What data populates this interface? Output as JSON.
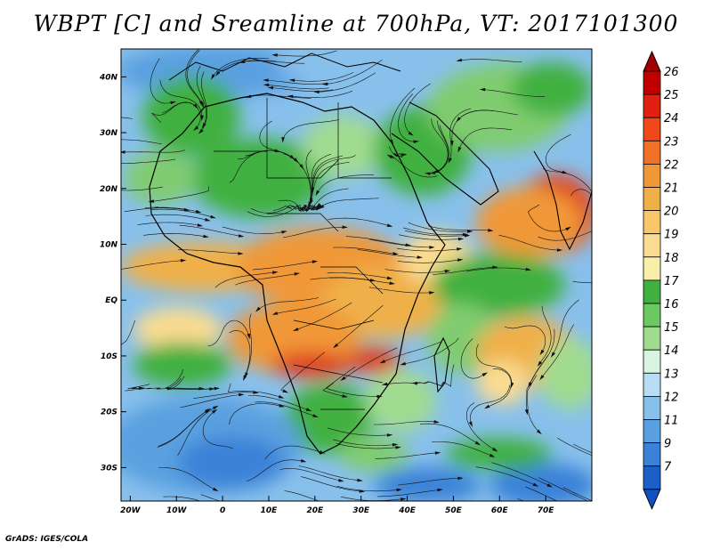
{
  "title": "WBPT [C] and Sreamline at 700hPa, VT: 2017101300",
  "credit": "GrADS: IGES/COLA",
  "map": {
    "lon_range": [
      -22,
      80
    ],
    "lat_range": [
      -36,
      45
    ],
    "lat_ticks": [
      {
        "value": 40,
        "label": "40N"
      },
      {
        "value": 30,
        "label": "30N"
      },
      {
        "value": 20,
        "label": "20N"
      },
      {
        "value": 10,
        "label": "10N"
      },
      {
        "value": 0,
        "label": "EQ"
      },
      {
        "value": -10,
        "label": "10S"
      },
      {
        "value": -20,
        "label": "20S"
      },
      {
        "value": -30,
        "label": "30S"
      }
    ],
    "lon_ticks": [
      {
        "value": -20,
        "label": "20W"
      },
      {
        "value": -10,
        "label": "10W"
      },
      {
        "value": 0,
        "label": "0"
      },
      {
        "value": 10,
        "label": "10E"
      },
      {
        "value": 20,
        "label": "20E"
      },
      {
        "value": 30,
        "label": "30E"
      },
      {
        "value": 40,
        "label": "40E"
      },
      {
        "value": 50,
        "label": "50E"
      },
      {
        "value": 60,
        "label": "60E"
      },
      {
        "value": 70,
        "label": "70E"
      }
    ]
  },
  "colorbar": {
    "labels": [
      "26",
      "25",
      "24",
      "23",
      "22",
      "21",
      "20",
      "19",
      "18",
      "17",
      "16",
      "15",
      "14",
      "13",
      "12",
      "11",
      "9",
      "7"
    ],
    "colors": [
      "#c00000",
      "#e02010",
      "#f04818",
      "#f07028",
      "#f09838",
      "#f0b048",
      "#f8c868",
      "#fadc90",
      "#f8f0a8",
      "#40b040",
      "#6cc860",
      "#a0dc90",
      "#d8f4e0",
      "#b8dcf4",
      "#88c0ec",
      "#5aa0e0",
      "#3a82d8",
      "#1a60c8"
    ],
    "top_arrow_color": "#a00000",
    "bottom_arrow_color": "#1050c0"
  },
  "colors": {
    "ocean_cool": "#5aa0e0",
    "ocean_mid": "#88c0ec",
    "green": "#40b040",
    "green_light": "#80cc70",
    "orange": "#f0b048",
    "yellow": "#fadc90",
    "red": "#e04020"
  }
}
